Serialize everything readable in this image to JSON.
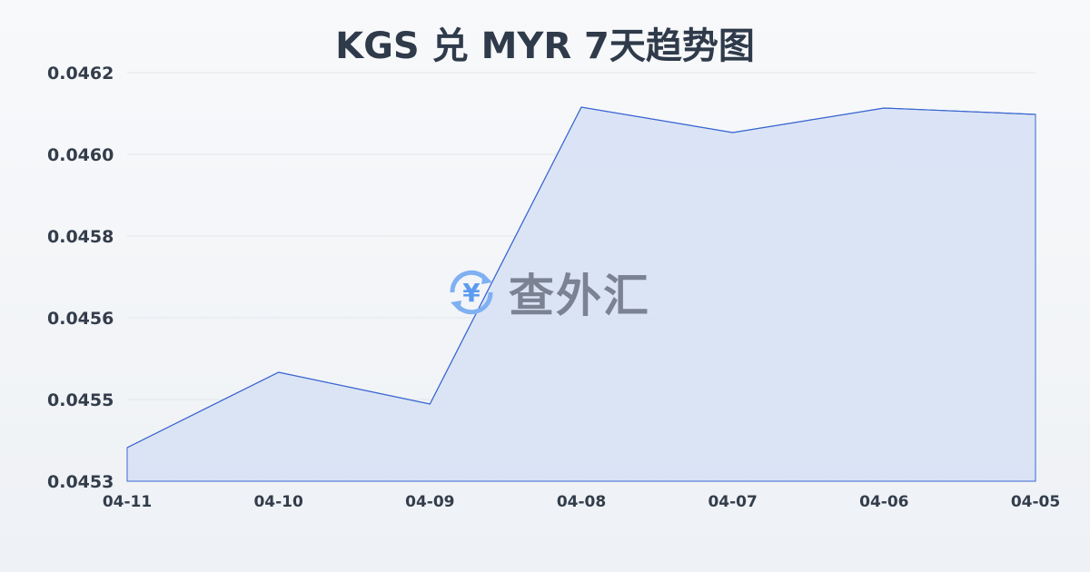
{
  "chart_data": {
    "type": "area",
    "title": "KGS 兑 MYR 7天趋势图",
    "xlabel": "",
    "ylabel": "",
    "categories": [
      "04-11",
      "04-10",
      "04-09",
      "04-08",
      "04-07",
      "04-06",
      "04-05"
    ],
    "series": [
      {
        "values": [
          0.045374,
          0.04554,
          0.04547,
          0.046124,
          0.046068,
          0.046122,
          0.046108
        ]
      }
    ],
    "ylim": [
      0.0453,
      0.0462
    ],
    "y_tick_labels": [
      "0.0453",
      "0.0455",
      "0.0456",
      "0.0458",
      "0.0460",
      "0.0462"
    ],
    "grid": true,
    "colors": {
      "line": "#3a66d0",
      "fill": "#d6e0f5"
    }
  },
  "watermark": {
    "text": "查外汇",
    "icon": "yen-exchange-icon",
    "color": "#5b9bf0"
  }
}
